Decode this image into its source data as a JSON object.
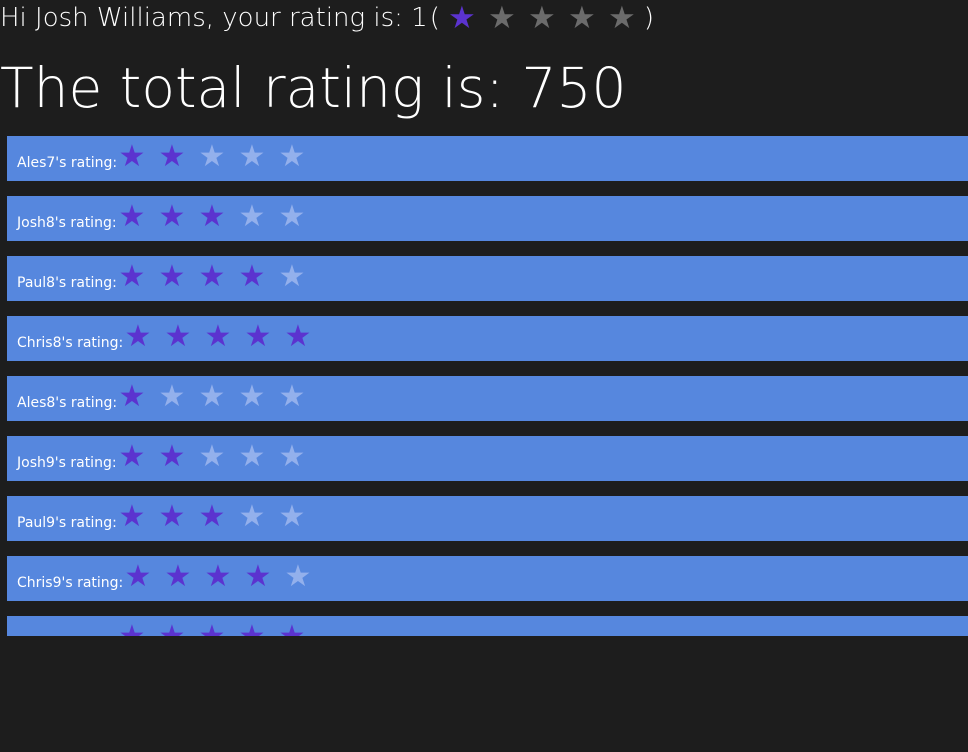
{
  "header": {
    "greeting_prefix": "Hi Josh Williams, your rating is: 1",
    "open_paren": "(",
    "close_paren": ")",
    "user_rating": 1,
    "max_stars": 5,
    "total_text": "The total rating is: 750"
  },
  "colors": {
    "background": "#1d1d1d",
    "row_background": "#5687de",
    "star_filled": "#5b33cf",
    "star_empty_row": "#93b0ec",
    "star_empty_header": "#6b6b6b"
  },
  "icons": {
    "star": "star-icon"
  },
  "ratings": [
    {
      "label": "Ales7's rating:",
      "stars": 2
    },
    {
      "label": "Josh8's rating:",
      "stars": 3
    },
    {
      "label": "Paul8's rating:",
      "stars": 4
    },
    {
      "label": "Chris8's rating:",
      "stars": 5
    },
    {
      "label": "Ales8's rating:",
      "stars": 1
    },
    {
      "label": "Josh9's rating:",
      "stars": 2
    },
    {
      "label": "Paul9's rating:",
      "stars": 3
    },
    {
      "label": "Chris9's rating:",
      "stars": 4
    },
    {
      "label": "",
      "stars": 5
    }
  ]
}
